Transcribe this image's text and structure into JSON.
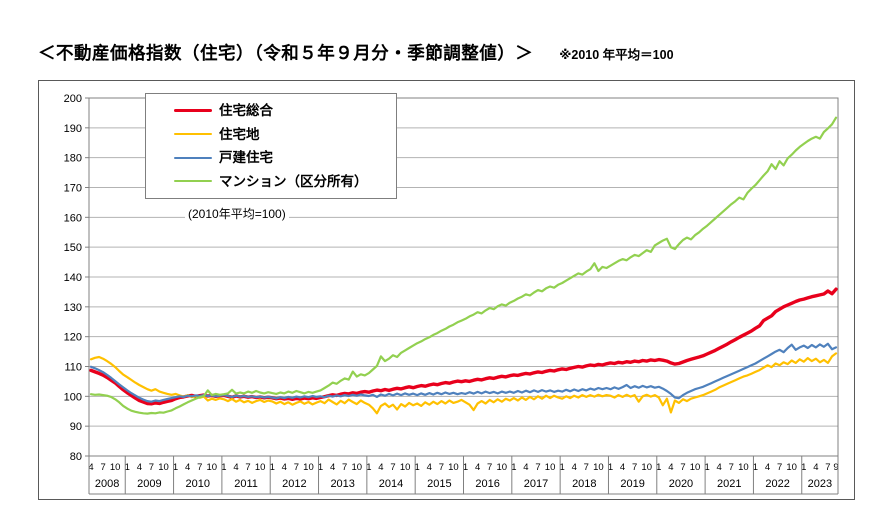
{
  "header": {
    "title": "＜不動産価格指数（住宅）（令和５年９月分・季節調整値）＞",
    "note": "※2010 年平均＝100"
  },
  "chart_data": {
    "type": "line",
    "title": "＜不動産価格指数（住宅）（令和５年９月分・季節調整値）＞",
    "subtitle_note": "※2010 年平均＝100",
    "annotation": "(2010年平均=100)",
    "x_unit": "month",
    "x_start": "2008-04",
    "x_end": "2023-09",
    "x_month_tick_labels": [
      1,
      4,
      7,
      10
    ],
    "x_year_labels": [
      2008,
      2009,
      2010,
      2011,
      2012,
      2013,
      2014,
      2015,
      2016,
      2017,
      2018,
      2019,
      2020,
      2021,
      2022,
      2023
    ],
    "ylim": [
      80,
      200
    ],
    "y_tick_step": 10,
    "grid": "horizontal",
    "legend_position": "top-left-inside",
    "axis_colors": {
      "gridline": "#b3b3b3",
      "border": "#808080",
      "text": "#000000"
    },
    "series": [
      {
        "name": "住宅総合",
        "color": "#e8001c",
        "width": 3.4,
        "values": [
          108.7,
          108.2,
          107.7,
          107.1,
          106.3,
          105.4,
          104.5,
          103.3,
          102.2,
          101.2,
          100.3,
          99.4,
          98.6,
          98.1,
          97.6,
          97.5,
          97.8,
          97.6,
          98.0,
          98.3,
          98.6,
          99.2,
          99.6,
          99.8,
          100.1,
          100.3,
          100.0,
          100.2,
          100.4,
          100.1,
          100.3,
          100.0,
          100.2,
          100.3,
          100.0,
          99.7,
          100.1,
          99.8,
          100.0,
          99.7,
          99.9,
          99.6,
          99.8,
          99.5,
          99.7,
          99.5,
          99.2,
          99.4,
          99.1,
          99.3,
          99.0,
          99.3,
          99.1,
          99.4,
          99.2,
          99.5,
          99.3,
          99.6,
          99.9,
          100.2,
          100.5,
          100.3,
          100.7,
          101.0,
          100.8,
          101.2,
          101.0,
          101.4,
          101.6,
          101.4,
          101.8,
          102.1,
          101.9,
          102.3,
          102.0,
          102.4,
          102.7,
          102.5,
          102.9,
          103.2,
          102.9,
          103.3,
          103.6,
          103.4,
          103.8,
          104.1,
          103.9,
          104.3,
          104.6,
          104.4,
          104.8,
          105.1,
          104.9,
          105.2,
          105.0,
          105.4,
          105.7,
          105.5,
          105.9,
          106.2,
          106.0,
          106.4,
          106.7,
          106.5,
          106.9,
          107.2,
          107.0,
          107.4,
          107.7,
          107.5,
          107.9,
          108.2,
          108.0,
          108.4,
          108.7,
          108.5,
          108.9,
          109.2,
          109.0,
          109.4,
          109.7,
          110.0,
          109.8,
          110.2,
          110.5,
          110.3,
          110.7,
          110.5,
          110.9,
          111.2,
          111.0,
          111.4,
          111.2,
          111.6,
          111.4,
          111.8,
          111.6,
          112.0,
          111.8,
          112.2,
          112.0,
          112.3,
          112.1,
          111.8,
          111.2,
          110.8,
          111.0,
          111.5,
          112.0,
          112.4,
          112.8,
          113.2,
          113.6,
          114.2,
          114.8,
          115.4,
          116.1,
          116.8,
          117.5,
          118.3,
          119.0,
          119.8,
          120.5,
          121.2,
          121.9,
          122.8,
          123.6,
          125.4,
          126.2,
          127.0,
          128.4,
          129.2,
          130.0,
          130.6,
          131.2,
          131.8,
          132.3,
          132.6,
          133.0,
          133.4,
          133.7,
          134.0,
          134.3,
          135.3,
          134.4,
          135.9
        ]
      },
      {
        "name": "住宅地",
        "color": "#ffc000",
        "width": 2.2,
        "values": [
          112.4,
          112.9,
          113.2,
          112.6,
          111.8,
          110.9,
          109.8,
          108.5,
          107.3,
          106.4,
          105.5,
          104.6,
          103.8,
          103.1,
          102.4,
          101.9,
          102.4,
          101.6,
          101.2,
          100.8,
          100.5,
          100.8,
          100.3,
          99.9,
          100.4,
          99.7,
          100.1,
          99.5,
          99.9,
          98.6,
          99.2,
          98.8,
          99.3,
          99.0,
          98.4,
          99.1,
          98.2,
          98.8,
          98.0,
          98.5,
          97.8,
          98.4,
          98.8,
          98.1,
          98.6,
          98.3,
          97.6,
          98.2,
          97.4,
          98.0,
          97.2,
          97.8,
          98.3,
          97.5,
          98.1,
          97.3,
          97.9,
          98.4,
          97.7,
          98.9,
          98.1,
          97.3,
          98.5,
          97.7,
          98.9,
          98.1,
          97.4,
          98.6,
          97.8,
          97.2,
          96.0,
          94.3,
          96.8,
          97.6,
          96.4,
          97.2,
          95.6,
          97.4,
          96.6,
          97.8,
          97.0,
          97.6,
          96.8,
          98.0,
          97.2,
          98.2,
          97.4,
          98.4,
          97.6,
          98.6,
          97.8,
          98.2,
          98.8,
          98.0,
          97.2,
          95.4,
          97.6,
          98.4,
          97.6,
          98.8,
          98.0,
          99.0,
          98.2,
          99.2,
          98.6,
          99.4,
          98.6,
          99.6,
          98.8,
          99.8,
          99.0,
          100.0,
          99.2,
          100.2,
          99.4,
          100.2,
          99.6,
          99.2,
          100.0,
          99.4,
          100.2,
          99.6,
          100.4,
          99.8,
          100.4,
          99.9,
          100.5,
          100.0,
          100.4,
          100.2,
          99.6,
          100.4,
          99.8,
          100.5,
          99.9,
          100.4,
          98.2,
          100.0,
          100.5,
          99.9,
          100.4,
          99.6,
          97.0,
          99.2,
          94.6,
          98.6,
          97.8,
          99.0,
          98.4,
          99.2,
          99.6,
          100.0,
          100.4,
          101.0,
          101.6,
          102.2,
          103.0,
          103.6,
          104.2,
          104.8,
          105.4,
          106.0,
          106.6,
          107.0,
          107.6,
          108.2,
          108.8,
          109.6,
          110.4,
          109.8,
          111.0,
          110.4,
          111.4,
          110.8,
          112.0,
          111.2,
          112.4,
          111.6,
          112.8,
          111.8,
          112.6,
          111.4,
          112.2,
          111.2,
          113.4,
          114.4
        ]
      },
      {
        "name": "戸建住宅",
        "color": "#4f81bd",
        "width": 2.2,
        "values": [
          109.9,
          109.4,
          108.8,
          108.1,
          107.2,
          106.2,
          105.1,
          104.0,
          103.0,
          102.0,
          101.1,
          100.3,
          99.5,
          98.9,
          98.4,
          98.2,
          98.6,
          98.4,
          98.8,
          99.1,
          99.4,
          99.7,
          100.0,
          99.8,
          100.2,
          100.0,
          100.3,
          100.1,
          100.4,
          100.1,
          100.3,
          100.0,
          100.2,
          100.4,
          100.1,
          99.8,
          100.2,
          99.9,
          100.1,
          99.8,
          100.0,
          99.7,
          99.9,
          99.6,
          99.8,
          99.6,
          99.3,
          99.7,
          99.4,
          99.8,
          99.5,
          99.9,
          99.6,
          100.0,
          99.7,
          100.1,
          99.8,
          100.0,
          99.7,
          100.2,
          99.9,
          100.3,
          100.0,
          100.4,
          100.1,
          100.5,
          100.2,
          100.6,
          100.3,
          100.1,
          100.5,
          99.8,
          100.6,
          100.2,
          100.8,
          100.3,
          100.9,
          100.4,
          101.0,
          100.5,
          100.9,
          100.4,
          101.0,
          100.5,
          101.1,
          100.6,
          101.2,
          100.7,
          101.3,
          100.8,
          101.2,
          100.7,
          101.1,
          100.8,
          101.4,
          100.9,
          101.5,
          101.0,
          101.6,
          101.1,
          101.5,
          101.0,
          101.6,
          101.2,
          101.6,
          101.2,
          101.8,
          101.3,
          101.9,
          101.4,
          102.0,
          101.5,
          102.1,
          101.6,
          102.0,
          101.5,
          101.9,
          101.6,
          102.2,
          101.7,
          102.3,
          101.8,
          102.4,
          102.0,
          102.6,
          102.2,
          102.8,
          102.4,
          102.8,
          102.4,
          103.0,
          102.5,
          103.1,
          103.8,
          102.8,
          103.4,
          102.9,
          103.5,
          103.0,
          103.4,
          102.9,
          103.2,
          102.6,
          101.8,
          100.8,
          99.6,
          99.4,
          100.4,
          101.2,
          101.8,
          102.4,
          102.8,
          103.2,
          103.8,
          104.4,
          105.0,
          105.6,
          106.2,
          106.8,
          107.4,
          108.0,
          108.6,
          109.2,
          109.8,
          110.4,
          111.0,
          111.8,
          112.6,
          113.4,
          114.2,
          115.0,
          115.6,
          114.8,
          116.2,
          117.3,
          115.6,
          116.4,
          117.0,
          116.2,
          117.2,
          116.4,
          117.4,
          116.6,
          117.6,
          115.8,
          116.4
        ]
      },
      {
        "name": "マンション（区分所有）",
        "color": "#92d050",
        "width": 2.2,
        "values": [
          100.7,
          100.5,
          100.6,
          100.4,
          100.2,
          99.8,
          99.0,
          98.0,
          96.8,
          95.9,
          95.2,
          94.8,
          94.5,
          94.3,
          94.2,
          94.4,
          94.3,
          94.6,
          94.5,
          94.9,
          95.3,
          96.0,
          96.6,
          97.3,
          98.0,
          98.6,
          99.2,
          99.7,
          100.1,
          102.0,
          100.4,
          100.8,
          100.5,
          100.7,
          101.0,
          102.2,
          100.9,
          101.3,
          101.0,
          101.6,
          101.2,
          101.8,
          101.3,
          101.0,
          101.4,
          101.1,
          100.8,
          101.3,
          101.0,
          101.6,
          101.2,
          101.8,
          101.4,
          101.0,
          101.5,
          101.2,
          101.6,
          102.0,
          102.8,
          103.6,
          104.6,
          104.2,
          105.2,
          106.0,
          105.6,
          108.3,
          106.6,
          107.4,
          107.0,
          107.8,
          109.0,
          110.2,
          113.4,
          111.8,
          112.6,
          113.8,
          113.2,
          114.6,
          115.4,
          116.2,
          117.0,
          117.8,
          118.4,
          119.2,
          119.8,
          120.6,
          121.2,
          122.0,
          122.6,
          123.4,
          124.0,
          124.8,
          125.4,
          126.0,
          126.8,
          127.4,
          128.2,
          127.8,
          128.8,
          129.6,
          129.2,
          130.2,
          130.8,
          130.4,
          131.4,
          132.0,
          132.8,
          133.4,
          134.2,
          133.8,
          134.8,
          135.6,
          135.2,
          136.2,
          136.8,
          136.4,
          137.4,
          138.0,
          138.8,
          139.6,
          140.4,
          141.2,
          140.8,
          141.8,
          142.6,
          144.6,
          142.0,
          143.4,
          143.0,
          143.8,
          144.6,
          145.4,
          146.0,
          145.6,
          146.6,
          147.4,
          147.0,
          148.0,
          149.0,
          148.4,
          150.6,
          151.4,
          152.2,
          152.8,
          150.0,
          149.4,
          151.0,
          152.4,
          153.2,
          152.6,
          154.0,
          155.0,
          156.2,
          157.2,
          158.4,
          159.6,
          160.8,
          162.0,
          163.2,
          164.4,
          165.4,
          166.6,
          166.0,
          168.2,
          169.6,
          170.8,
          172.4,
          174.0,
          175.4,
          177.8,
          176.2,
          178.8,
          177.4,
          179.8,
          181.0,
          182.4,
          183.6,
          184.6,
          185.6,
          186.4,
          187.0,
          186.4,
          188.6,
          189.8,
          191.2,
          193.4
        ]
      }
    ]
  }
}
